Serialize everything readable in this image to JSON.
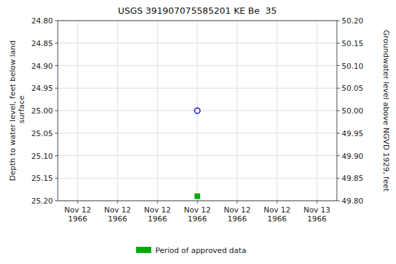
{
  "chart_data": {
    "type": "scatter",
    "title": "USGS 391907075585201 KE Be  35",
    "y_label": "Depth to water level, feet below land\n surface",
    "y2_label": "Groundwater level above NGVD 1929, feet",
    "categories": [
      "Nov 12\n1966",
      "Nov 12\n1966",
      "Nov 12\n1966",
      "Nov 12\n1966",
      "Nov 12\n1966",
      "Nov 12\n1966",
      "Nov 13\n1966"
    ],
    "series": [
      {
        "color": "#0000cc",
        "marker": "circle-open",
        "values": [
          null,
          null,
          null,
          25.0,
          null,
          null,
          null
        ]
      },
      {
        "name": "Period of approved data",
        "color": "#00aa00",
        "marker": "square",
        "values": [
          null,
          null,
          null,
          25.19,
          null,
          null,
          null
        ]
      }
    ],
    "ylim": [
      25.2,
      24.8
    ],
    "yticks": [
      {
        "value": 24.8,
        "label": "24.80"
      },
      {
        "value": 24.85,
        "label": "24.85"
      },
      {
        "value": 24.9,
        "label": "24.90"
      },
      {
        "value": 24.95,
        "label": "24.95"
      },
      {
        "value": 25.0,
        "label": "25.00"
      },
      {
        "value": 25.05,
        "label": "25.05"
      },
      {
        "value": 25.1,
        "label": "25.10"
      },
      {
        "value": 25.15,
        "label": "25.15"
      },
      {
        "value": 25.2,
        "label": "25.20"
      }
    ],
    "y2lim": [
      49.8,
      50.2
    ],
    "y2ticks": [
      {
        "value": 50.2,
        "label": "50.20"
      },
      {
        "value": 50.15,
        "label": "50.15"
      },
      {
        "value": 50.1,
        "label": "50.10"
      },
      {
        "value": 50.05,
        "label": "50.05"
      },
      {
        "value": 50.0,
        "label": "50.00"
      },
      {
        "value": 49.95,
        "label": "49.95"
      },
      {
        "value": 49.9,
        "label": "49.90"
      },
      {
        "value": 49.85,
        "label": "49.85"
      },
      {
        "value": 49.8,
        "label": "49.80"
      }
    ],
    "grid": true,
    "legend": "bottom"
  }
}
